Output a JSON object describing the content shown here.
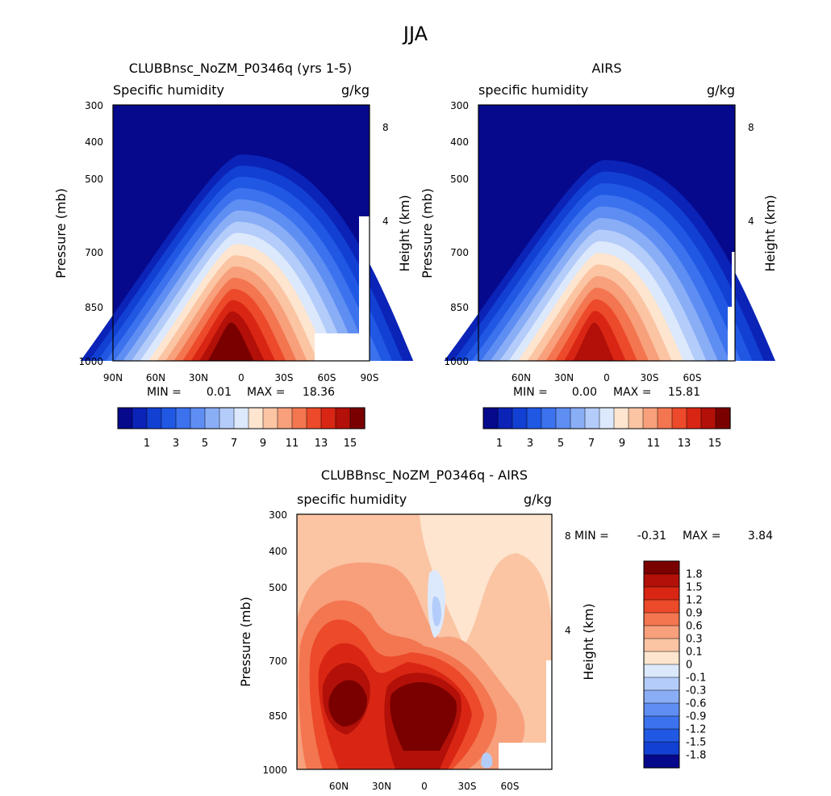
{
  "figure": {
    "title": "JJA"
  },
  "chart_data": [
    {
      "type": "heatmap",
      "title": "CLUBBnsc_NoZM_P0346q (yrs 1-5)",
      "variable": "Specific humidity",
      "units": "g/kg",
      "ylabel": "Pressure (mb)",
      "y2label": "Height (km)",
      "x_ticks": [
        "90N",
        "60N",
        "30N",
        "0",
        "30S",
        "60S",
        "90S"
      ],
      "y_ticks": [
        "300",
        "400",
        "500",
        "700",
        "850",
        "1000"
      ],
      "y2_ticks": [
        "8",
        "4"
      ],
      "ylim": [
        1000,
        300
      ],
      "min_label": "MIN =",
      "min": "0.01",
      "max_label": "MAX =",
      "max": "18.36",
      "peak_value_gkg": 18.36,
      "colorbar_labels": [
        "1",
        "3",
        "5",
        "7",
        "9",
        "11",
        "13",
        "15"
      ],
      "colorbar_colors": [
        "#06098c",
        "#0b23b7",
        "#1240d3",
        "#2058e4",
        "#3c72ee",
        "#5f8ef3",
        "#8aaef6",
        "#b4ccfa",
        "#dce8fc",
        "#fde5cf",
        "#fbc4a3",
        "#f7a07b",
        "#f37650",
        "#ec4a2a",
        "#d92614",
        "#b21008",
        "#7a0000"
      ]
    },
    {
      "type": "heatmap",
      "title": "AIRS",
      "variable": "specific humidity",
      "units": "g/kg",
      "ylabel": "Pressure (mb)",
      "y2label": "Height (km)",
      "x_ticks": [
        "60N",
        "30N",
        "0",
        "30S",
        "60S"
      ],
      "y_ticks": [
        "300",
        "400",
        "500",
        "700",
        "850",
        "1000"
      ],
      "y2_ticks": [
        "8",
        "4"
      ],
      "ylim": [
        1000,
        300
      ],
      "min_label": "MIN =",
      "min": "0.00",
      "max_label": "MAX =",
      "max": "15.81",
      "peak_value_gkg": 15.81,
      "colorbar_labels": [
        "1",
        "3",
        "5",
        "7",
        "9",
        "11",
        "13",
        "15"
      ],
      "colorbar_colors": [
        "#06098c",
        "#0b23b7",
        "#1240d3",
        "#2058e4",
        "#3c72ee",
        "#5f8ef3",
        "#8aaef6",
        "#b4ccfa",
        "#dce8fc",
        "#fde5cf",
        "#fbc4a3",
        "#f7a07b",
        "#f37650",
        "#ec4a2a",
        "#d92614",
        "#b21008",
        "#7a0000"
      ]
    },
    {
      "type": "heatmap",
      "title": "CLUBBnsc_NoZM_P0346q - AIRS",
      "variable": "specific humidity",
      "units": "g/kg",
      "ylabel": "Pressure (mb)",
      "y2label": "Height (km)",
      "x_ticks": [
        "60N",
        "30N",
        "0",
        "30S",
        "60S"
      ],
      "y_ticks": [
        "300",
        "400",
        "500",
        "700",
        "850",
        "1000"
      ],
      "y2_ticks": [
        "8",
        "4"
      ],
      "ylim": [
        1000,
        300
      ],
      "min_label": "MIN =",
      "min": "-0.31",
      "max_label": "MAX =",
      "max": "3.84",
      "colorbar_labels": [
        "1.8",
        "1.5",
        "1.2",
        "0.9",
        "0.6",
        "0.3",
        "0.1",
        "0",
        "-0.1",
        "-0.3",
        "-0.6",
        "-0.9",
        "-1.2",
        "-1.5",
        "-1.8"
      ],
      "colorbar_colors": [
        "#7a0000",
        "#b21008",
        "#d92614",
        "#ec4a2a",
        "#f37650",
        "#f7a07b",
        "#fbc4a3",
        "#fde5cf",
        "#dce8fc",
        "#b4ccfa",
        "#8aaef6",
        "#5f8ef3",
        "#3c72ee",
        "#2058e4",
        "#1240d3",
        "#06098c"
      ]
    }
  ]
}
